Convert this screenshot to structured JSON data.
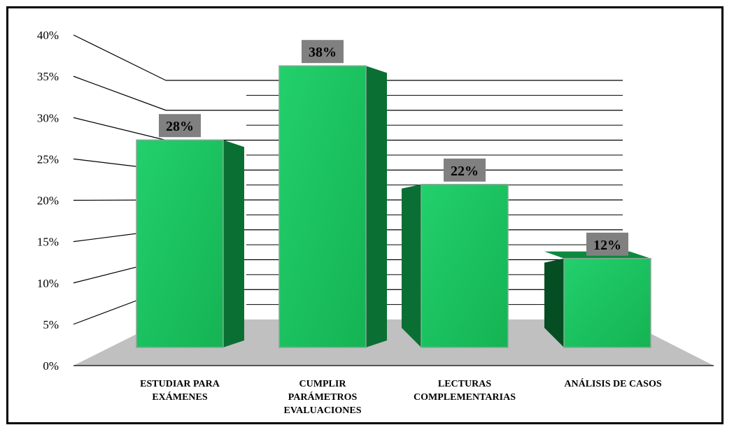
{
  "chart_data": {
    "type": "bar",
    "title": "",
    "xlabel": "",
    "ylabel": "",
    "categories": [
      [
        "ESTUDIAR PARA",
        "EXÁMENES"
      ],
      [
        "CUMPLIR",
        "PARÁMETROS",
        "EVALUACIONES"
      ],
      [
        "LECTURAS",
        "COMPLEMENTARIAS"
      ],
      [
        "ANÁLISIS DE CASOS"
      ]
    ],
    "values": [
      28,
      38,
      22,
      12
    ],
    "data_labels": [
      "28%",
      "38%",
      "22%",
      "12%"
    ],
    "ylim": [
      0,
      40
    ],
    "yticks": [
      0,
      5,
      10,
      15,
      20,
      25,
      30,
      35,
      40
    ],
    "ytick_labels": [
      "0%",
      "5%",
      "10%",
      "15%",
      "20%",
      "25%",
      "30%",
      "35%",
      "40%"
    ],
    "grid": true,
    "legend": "none",
    "colors": {
      "bar_front": "#19c15e",
      "bar_front_light": "#22d06c",
      "bar_side": "#0a6f33",
      "bar_side_dark": "#054d22",
      "bar_border": "#8aa79a",
      "floor": "#c0c0c0",
      "label_box": "#808080"
    }
  }
}
